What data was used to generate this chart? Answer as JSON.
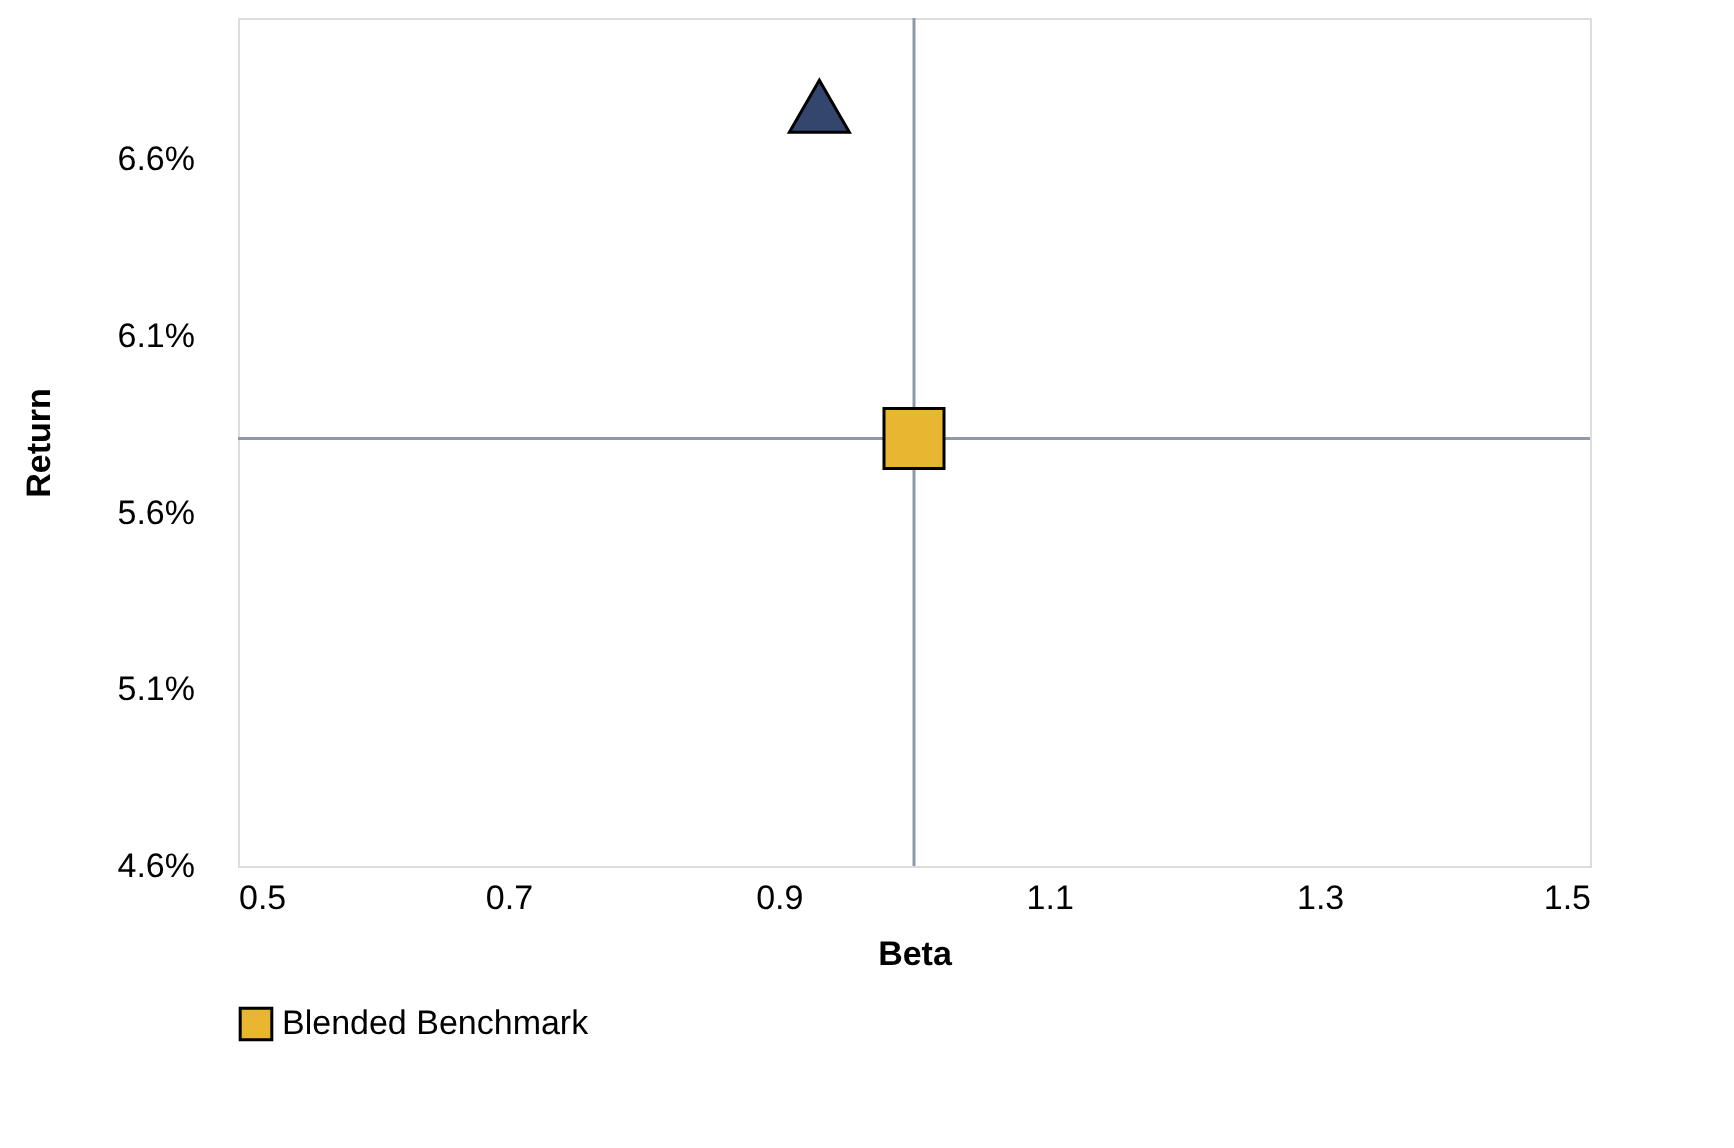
{
  "chart_data": {
    "type": "scatter",
    "xlabel": "Beta",
    "ylabel": "Return",
    "xlim": [
      0.5,
      1.5
    ],
    "xticks": [
      0.5,
      0.7,
      0.9,
      1.1,
      1.3,
      1.5
    ],
    "ylim": [
      4.6,
      7.0
    ],
    "yticks": [
      {
        "value": 4.6,
        "label": "4.6%"
      },
      {
        "value": 5.1,
        "label": "5.1%"
      },
      {
        "value": 5.6,
        "label": "5.6%"
      },
      {
        "value": 6.1,
        "label": "6.1%"
      },
      {
        "value": 6.6,
        "label": "6.6%"
      }
    ],
    "series": [
      {
        "color": "#34466e",
        "marker": "triangle",
        "x": [
          0.93
        ],
        "values": [
          6.75
        ]
      },
      {
        "name": "Blended Benchmark",
        "color": "#e8b631",
        "marker": "square",
        "x": [
          1.0
        ],
        "values": [
          5.81
        ]
      }
    ],
    "ref_lines": [
      {
        "axis": "x",
        "value": 1.0,
        "color": "#8e9aab"
      },
      {
        "axis": "y",
        "value": 5.81,
        "color": "#8e9aab"
      }
    ],
    "grid": false,
    "legend": "bottom"
  }
}
